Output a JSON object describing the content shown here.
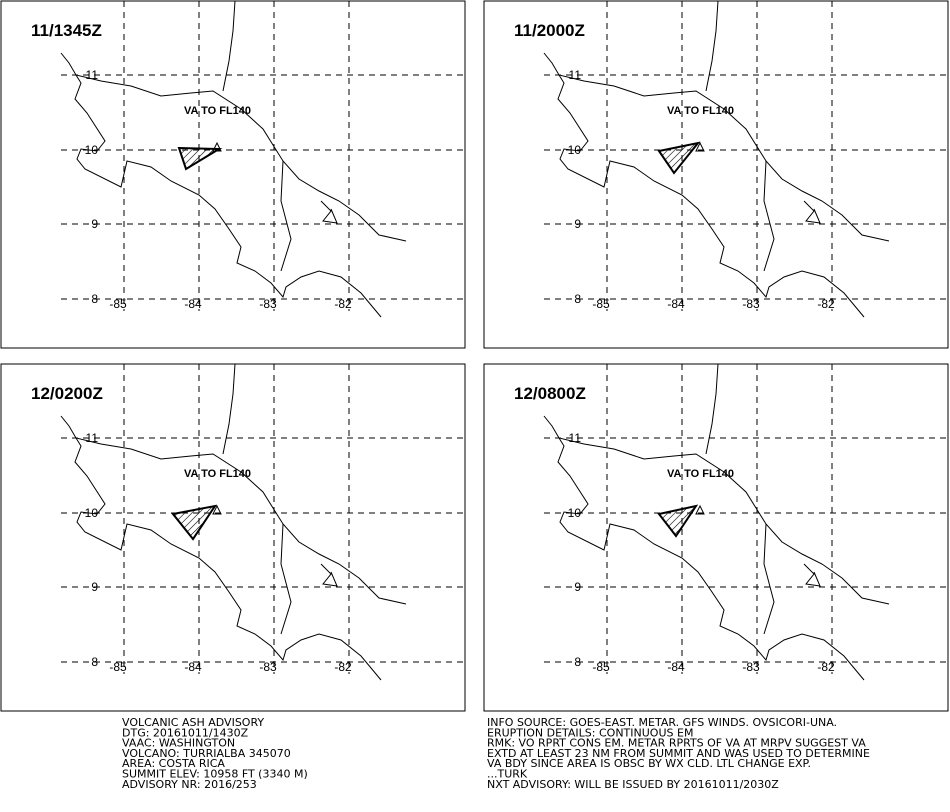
{
  "panels": [
    {
      "time": "11/1345Z",
      "annotation": "VA TO FL140"
    },
    {
      "time": "11/2000Z",
      "annotation": "VA TO FL140"
    },
    {
      "time": "12/0200Z",
      "annotation": "VA TO FL140"
    },
    {
      "time": "12/0800Z",
      "annotation": "VA TO FL140"
    }
  ],
  "lat_labels": [
    "11",
    "10",
    "9",
    "8"
  ],
  "lon_labels": [
    "-85",
    "-84",
    "-83",
    "-82"
  ],
  "advisory": {
    "left": [
      "VOLCANIC ASH ADVISORY",
      "DTG: 20161011/1430Z",
      "VAAC: WASHINGTON",
      "VOLCANO: TURRIALBA 345070",
      "AREA: COSTA RICA",
      "SUMMIT ELEV: 10958 FT (3340 M)",
      "ADVISORY NR: 2016/253"
    ],
    "right": [
      "INFO SOURCE: GOES-EAST. METAR. GFS WINDS. OVSICORI-UNA.",
      "ERUPTION DETAILS: CONTINUOUS EM",
      "RMK: VO RPRT CONS EM. METAR RPRTS OF VA AT MRPV SUGGEST VA",
      "EXTD AT LEAST 23 NM FROM SUMMIT AND WAS USED TO DETERMINE",
      "VA BDY SINCE AREA IS OBSC BY WX CLD. LTL CHANGE EXP.",
      "...TURK",
      "NXT ADVISORY: WILL BE ISSUED BY 20161011/2030Z"
    ]
  }
}
